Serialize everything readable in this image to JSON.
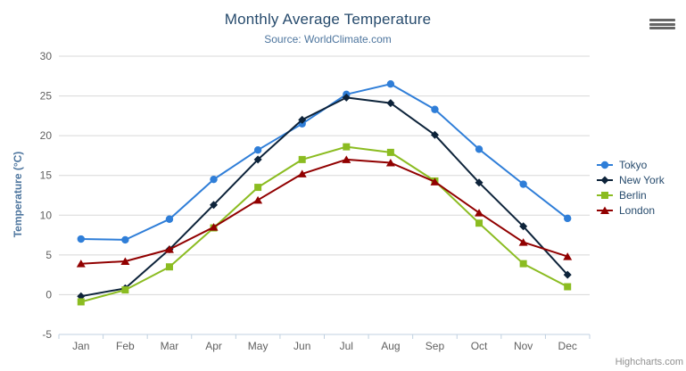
{
  "chart_data": {
    "type": "line",
    "title": "Monthly Average Temperature",
    "subtitle": "Source: WorldClimate.com",
    "categories": [
      "Jan",
      "Feb",
      "Mar",
      "Apr",
      "May",
      "Jun",
      "Jul",
      "Aug",
      "Sep",
      "Oct",
      "Nov",
      "Dec"
    ],
    "series": [
      {
        "name": "Tokyo",
        "color": "#2f7ed8",
        "marker": "circle",
        "values": [
          7.0,
          6.9,
          9.5,
          14.5,
          18.2,
          21.5,
          25.2,
          26.5,
          23.3,
          18.3,
          13.9,
          9.6
        ]
      },
      {
        "name": "New York",
        "color": "#0d233a",
        "marker": "diamond",
        "values": [
          -0.2,
          0.8,
          5.7,
          11.3,
          17.0,
          22.0,
          24.8,
          24.1,
          20.1,
          14.1,
          8.6,
          2.5
        ]
      },
      {
        "name": "Berlin",
        "color": "#8bbc21",
        "marker": "square",
        "values": [
          -0.9,
          0.6,
          3.5,
          8.4,
          13.5,
          17.0,
          18.6,
          17.9,
          14.3,
          9.0,
          3.9,
          1.0
        ]
      },
      {
        "name": "London",
        "color": "#910000",
        "marker": "triangle",
        "values": [
          3.9,
          4.2,
          5.7,
          8.5,
          11.9,
          15.2,
          17.0,
          16.6,
          14.2,
          10.3,
          6.6,
          4.8
        ]
      }
    ],
    "xlabel": "",
    "ylabel": "Temperature (°C)",
    "ylim": [
      -5,
      30
    ],
    "yticks": [
      -5,
      0,
      5,
      10,
      15,
      20,
      25,
      30
    ],
    "legend_position": "right",
    "grid": "horizontal",
    "colors": {
      "title": "#274b6d",
      "subtitle": "#4d759e",
      "axis_labels": "#606060",
      "gridline": "#d8d8d8",
      "axis_line": "#c0d0e0"
    }
  },
  "icons": {
    "export_menu": "hamburger-menu-icon"
  },
  "credits": {
    "text": "Highcharts.com"
  }
}
